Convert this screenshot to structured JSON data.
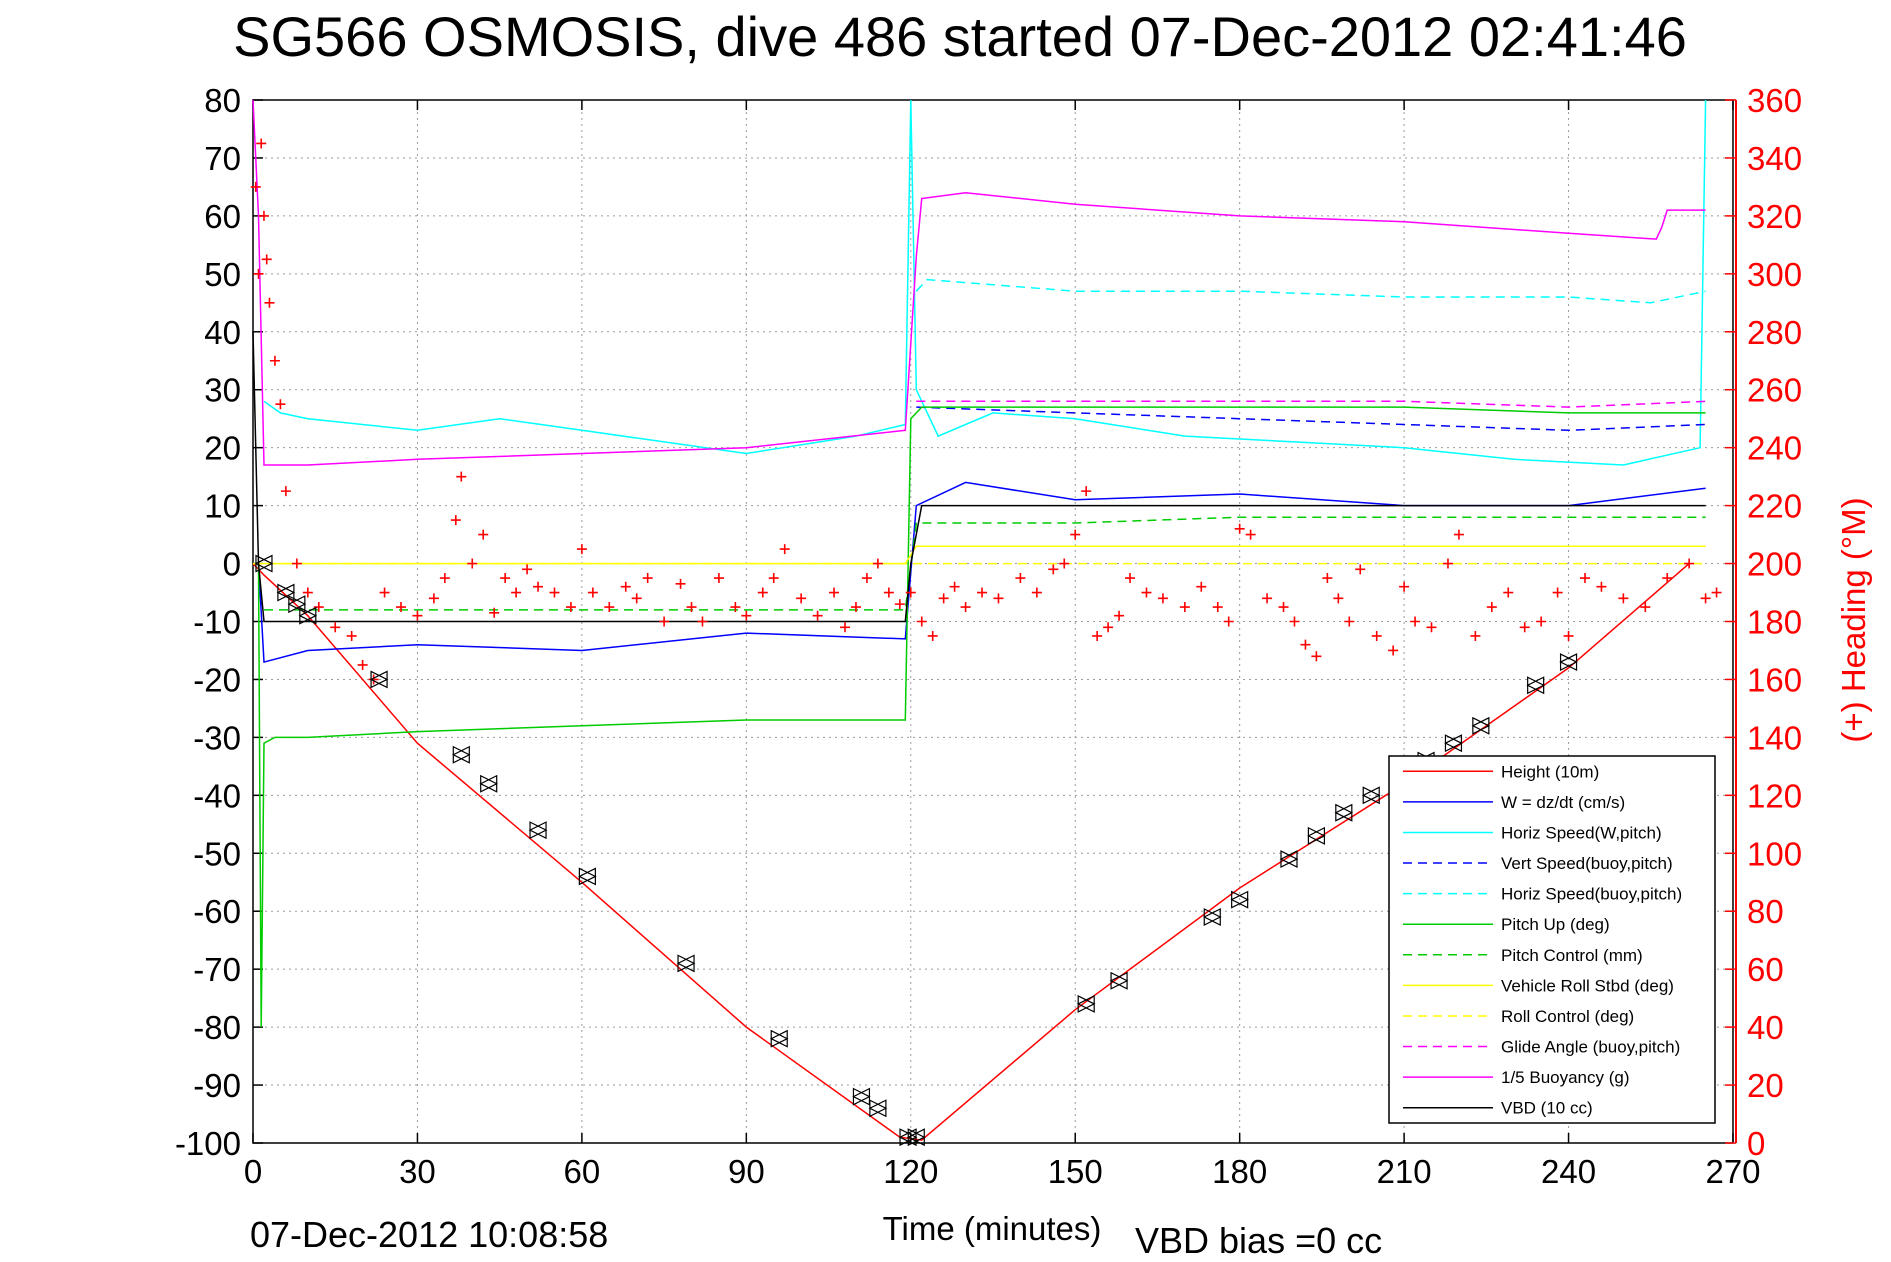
{
  "chart_data": {
    "type": "line",
    "title": "SG566 OSMOSIS, dive 486 started 07-Dec-2012 02:41:46",
    "xlabel": "Time (minutes)",
    "ylabel_right": "(+) Heading (°M)",
    "xlim": [
      0,
      270
    ],
    "ylim_left": [
      -100,
      80
    ],
    "ylim_right": [
      0,
      360
    ],
    "x_ticks": [
      "0",
      "30",
      "60",
      "90",
      "120",
      "150",
      "180",
      "210",
      "240",
      "270"
    ],
    "y_ticks_left": [
      "80",
      "70",
      "60",
      "50",
      "40",
      "30",
      "20",
      "10",
      "0",
      "-10",
      "-20",
      "-30",
      "-40",
      "-50",
      "-60",
      "-70",
      "-80",
      "-90",
      "-100"
    ],
    "y_ticks_right": [
      "360",
      "340",
      "320",
      "300",
      "280",
      "260",
      "240",
      "220",
      "200",
      "180",
      "160",
      "140",
      "120",
      "100",
      "80",
      "60",
      "40",
      "20",
      "0"
    ],
    "grid": true,
    "legend_position": "bottom-right",
    "footer_left": "07-Dec-2012 10:08:58",
    "footer_right": "VBD bias =0 cc",
    "series": [
      {
        "name": "Height (10m)",
        "color": "#ff0000",
        "dash": "solid",
        "x": [
          0,
          2,
          10,
          30,
          60,
          90,
          118,
          122,
          150,
          180,
          210,
          240,
          262
        ],
        "y": [
          0,
          -2,
          -9,
          -31,
          -55,
          -80,
          -99,
          -99.5,
          -77,
          -56,
          -38,
          -18,
          0
        ]
      },
      {
        "name": "W  = dz/dt (cm/s)",
        "color": "#0000ff",
        "dash": "solid",
        "x": [
          1,
          2,
          10,
          30,
          60,
          90,
          119,
          121,
          130,
          150,
          180,
          210,
          240,
          265
        ],
        "y": [
          0,
          -17,
          -15,
          -14,
          -15,
          -12,
          -13,
          10,
          14,
          11,
          12,
          10,
          10,
          13
        ]
      },
      {
        "name": "Horiz Speed(W,pitch)",
        "color": "#00ffff",
        "dash": "solid",
        "x": [
          2,
          5,
          10,
          20,
          30,
          45,
          60,
          75,
          90,
          110,
          119,
          120,
          121,
          125,
          135,
          150,
          170,
          190,
          210,
          230,
          250,
          264,
          265
        ],
        "y": [
          28,
          26,
          25,
          24,
          23,
          25,
          23,
          21,
          19,
          22,
          24,
          80,
          30,
          22,
          26,
          25,
          22,
          21,
          20,
          18,
          17,
          20,
          80
        ]
      },
      {
        "name": "Vert Speed(buoy,pitch)",
        "color": "#0000ff",
        "dash": "dashed",
        "x": [
          121,
          150,
          180,
          210,
          240,
          265
        ],
        "y": [
          27,
          26,
          25,
          24,
          23,
          24
        ]
      },
      {
        "name": "Horiz Speed(buoy,pitch)",
        "color": "#00ffff",
        "dash": "dashed",
        "x": [
          121,
          123,
          150,
          180,
          210,
          240,
          255,
          265
        ],
        "y": [
          47,
          49,
          47,
          47,
          46,
          46,
          45,
          47
        ]
      },
      {
        "name": "Pitch Up (deg)",
        "color": "#00cc00",
        "dash": "solid",
        "x": [
          1,
          1.5,
          2,
          4,
          10,
          30,
          60,
          90,
          119,
          120,
          122,
          150,
          180,
          210,
          240,
          265
        ],
        "y": [
          0,
          -80,
          -31,
          -30,
          -30,
          -29,
          -28,
          -27,
          -27,
          25,
          27,
          27,
          27,
          27,
          26,
          26
        ]
      },
      {
        "name": "Pitch Control (mm)",
        "color": "#00cc00",
        "dash": "dashed",
        "x": [
          2,
          10,
          60,
          119,
          121,
          150,
          180,
          210,
          240,
          265
        ],
        "y": [
          -8,
          -8,
          -8,
          -8,
          7,
          7,
          8,
          8,
          8,
          8
        ]
      },
      {
        "name": "Vehicle Roll Stbd (deg)",
        "color": "#ffff00",
        "dash": "solid",
        "x": [
          0,
          2,
          10,
          60,
          119,
          121,
          150,
          180,
          210,
          240,
          265
        ],
        "y": [
          0,
          0,
          0,
          0,
          0,
          3,
          3,
          3,
          3,
          3,
          3
        ]
      },
      {
        "name": "Roll Control (deg)",
        "color": "#ffff00",
        "dash": "dashed",
        "x": [
          0,
          2,
          60,
          119,
          121,
          150,
          180,
          210,
          240,
          265
        ],
        "y": [
          0,
          0,
          0,
          0,
          0,
          0,
          0,
          0,
          0,
          0
        ]
      },
      {
        "name": "Glide Angle (buoy,pitch)",
        "color": "#ff00ff",
        "dash": "dashed",
        "x": [
          121,
          150,
          180,
          210,
          240,
          265
        ],
        "y": [
          28,
          28,
          28,
          28,
          27,
          28
        ]
      },
      {
        "name": "1/5 Buoyancy (g)",
        "color": "#ff00ff",
        "dash": "solid",
        "x": [
          0,
          1,
          2,
          10,
          30,
          60,
          90,
          119,
          121,
          122,
          130,
          150,
          180,
          210,
          240,
          256,
          257,
          258,
          265
        ],
        "y": [
          80,
          60,
          17,
          17,
          18,
          19,
          20,
          23,
          53,
          63,
          64,
          62,
          60,
          59,
          57,
          56,
          58,
          61,
          61
        ]
      },
      {
        "name": "VBD (10 cc)",
        "color": "#000000",
        "dash": "solid",
        "x": [
          0,
          1,
          2,
          10,
          60,
          119,
          120,
          122,
          150,
          180,
          210,
          240,
          265
        ],
        "y": [
          40,
          0,
          -10,
          -10,
          -10,
          -10,
          0,
          10,
          10,
          10,
          10,
          10,
          10
        ]
      }
    ],
    "heading_series": {
      "name": "(+) Heading (°M)",
      "color": "#ff0000",
      "marker": "+",
      "x": [
        0.5,
        1,
        1.5,
        2,
        2.5,
        3,
        4,
        5,
        6,
        8,
        10,
        12,
        15,
        18,
        20,
        22,
        24,
        27,
        30,
        33,
        35,
        37,
        38,
        40,
        42,
        44,
        46,
        48,
        50,
        52,
        55,
        58,
        60,
        62,
        65,
        68,
        70,
        72,
        75,
        78,
        80,
        82,
        85,
        88,
        90,
        93,
        95,
        97,
        100,
        103,
        106,
        108,
        110,
        112,
        114,
        116,
        118,
        120,
        122,
        124,
        126,
        128,
        130,
        133,
        136,
        140,
        143,
        146,
        148,
        150,
        152,
        154,
        156,
        158,
        160,
        163,
        166,
        170,
        173,
        176,
        178,
        180,
        182,
        185,
        188,
        190,
        192,
        194,
        196,
        198,
        200,
        202,
        205,
        208,
        210,
        212,
        215,
        218,
        220,
        223,
        226,
        229,
        232,
        235,
        238,
        240,
        243,
        246,
        250,
        254,
        258,
        262,
        265,
        267
      ],
      "y": [
        330,
        300,
        345,
        320,
        305,
        290,
        270,
        255,
        225,
        200,
        190,
        185,
        178,
        175,
        165,
        160,
        190,
        185,
        182,
        188,
        195,
        215,
        230,
        200,
        210,
        183,
        195,
        190,
        198,
        192,
        190,
        185,
        205,
        190,
        185,
        192,
        188,
        195,
        180,
        193,
        185,
        180,
        195,
        185,
        182,
        190,
        195,
        205,
        188,
        182,
        190,
        178,
        185,
        195,
        200,
        190,
        186,
        190,
        180,
        175,
        188,
        192,
        185,
        190,
        188,
        195,
        190,
        198,
        200,
        210,
        225,
        175,
        178,
        182,
        195,
        190,
        188,
        185,
        192,
        185,
        180,
        212,
        210,
        188,
        185,
        180,
        172,
        168,
        195,
        188,
        180,
        198,
        175,
        170,
        192,
        180,
        178,
        200,
        210,
        175,
        185,
        190,
        178,
        180,
        190,
        175,
        195,
        192,
        188,
        185,
        195,
        200,
        188,
        190
      ]
    },
    "vbd_markers": {
      "x": [
        2,
        6,
        8,
        10,
        23,
        38,
        43,
        52,
        61,
        79,
        96,
        111,
        114,
        119.5,
        121,
        152,
        158,
        175,
        180,
        189,
        194,
        199,
        204,
        214,
        219,
        224,
        234,
        240
      ],
      "y": [
        0,
        -5,
        -7,
        -9,
        -20,
        -33,
        -38,
        -46,
        -54,
        -69,
        -82,
        -92,
        -94,
        -99,
        -99,
        -76,
        -72,
        -61,
        -58,
        -51,
        -47,
        -43,
        -40,
        -34,
        -31,
        -28,
        -21,
        -17
      ]
    }
  }
}
